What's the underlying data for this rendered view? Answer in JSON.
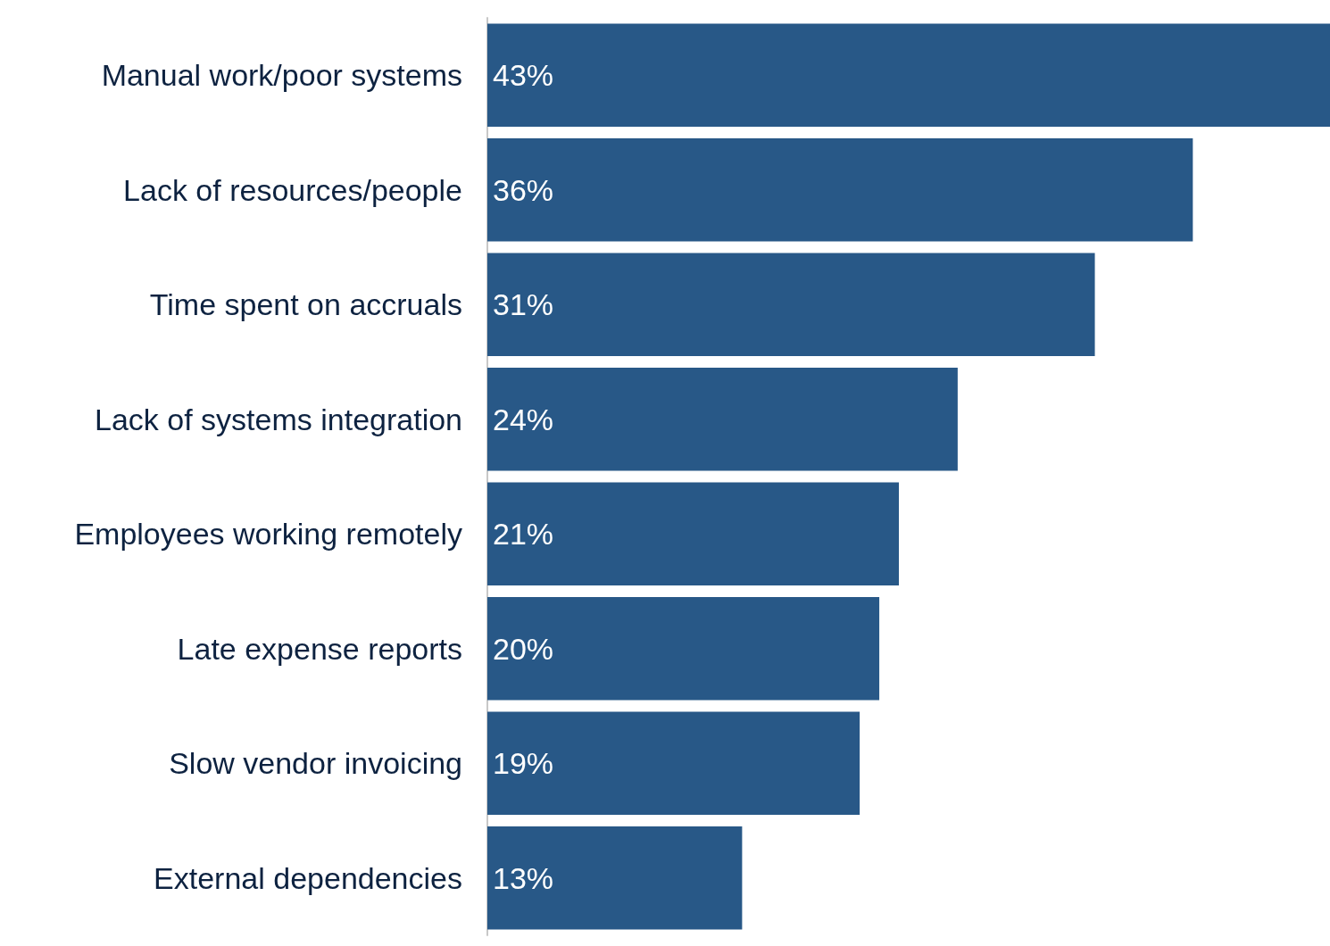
{
  "chart_data": {
    "type": "bar",
    "orientation": "horizontal",
    "categories": [
      "Manual work/poor systems",
      "Lack of resources/people",
      "Time spent on accruals",
      "Lack of systems integration",
      "Employees working remotely",
      "Late expense reports",
      "Slow vendor invoicing",
      "External dependencies"
    ],
    "values": [
      43,
      36,
      31,
      24,
      21,
      20,
      19,
      13
    ],
    "value_labels": [
      "43%",
      "36%",
      "31%",
      "24%",
      "21%",
      "20%",
      "19%",
      "13%"
    ],
    "color": "#285887"
  }
}
